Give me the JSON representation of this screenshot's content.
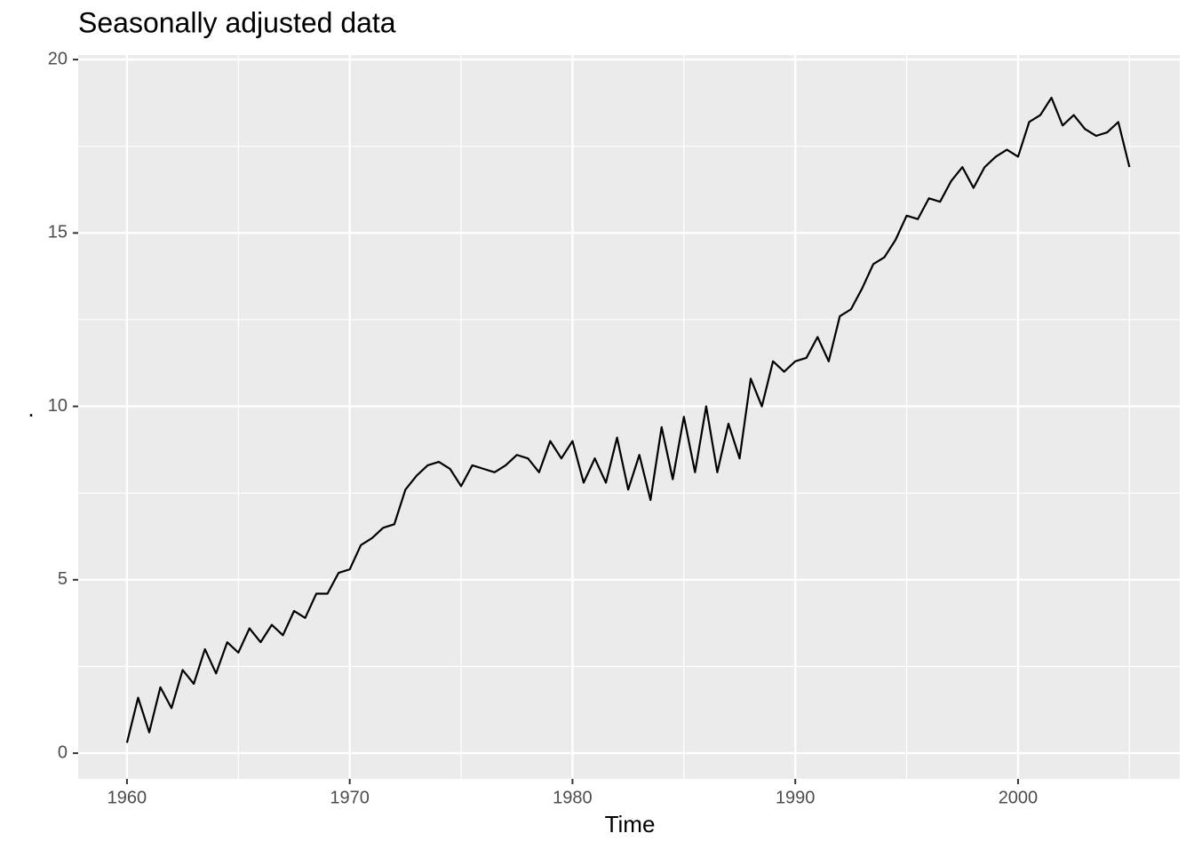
{
  "chart_data": {
    "type": "line",
    "title": "Seasonally adjusted data",
    "x_label": "Time",
    "y_label": ".",
    "x": [
      1960,
      1960.5,
      1961,
      1961.5,
      1962,
      1962.5,
      1963,
      1963.5,
      1964,
      1964.5,
      1965,
      1965.5,
      1966,
      1966.5,
      1967,
      1967.5,
      1968,
      1968.5,
      1969,
      1969.5,
      1970,
      1970.5,
      1971,
      1971.5,
      1972,
      1972.5,
      1973,
      1973.5,
      1974,
      1974.5,
      1975,
      1975.5,
      1976,
      1976.5,
      1977,
      1977.5,
      1978,
      1978.5,
      1979,
      1979.5,
      1980,
      1980.5,
      1981,
      1981.5,
      1982,
      1982.5,
      1983,
      1983.5,
      1984,
      1984.5,
      1985,
      1985.5,
      1986,
      1986.5,
      1987,
      1987.5,
      1988,
      1988.5,
      1989,
      1989.5,
      1990,
      1990.5,
      1991,
      1991.5,
      1992,
      1992.5,
      1993,
      1993.5,
      1994,
      1994.5,
      1995,
      1995.5,
      1996,
      1996.5,
      1997,
      1997.5,
      1998,
      1998.5,
      1999,
      1999.5,
      2000,
      2000.5,
      2001,
      2001.5,
      2002,
      2002.5,
      2003,
      2003.5,
      2004,
      2004.5,
      2005
    ],
    "values": [
      0.3,
      1.6,
      0.6,
      1.9,
      1.3,
      2.4,
      2.0,
      3.0,
      2.3,
      3.2,
      2.9,
      3.6,
      3.2,
      3.7,
      3.4,
      4.1,
      3.9,
      4.6,
      4.6,
      5.2,
      5.3,
      6.0,
      6.2,
      6.5,
      6.6,
      7.6,
      8.0,
      8.3,
      8.4,
      8.2,
      7.7,
      8.3,
      8.2,
      8.1,
      8.3,
      8.6,
      8.5,
      8.1,
      9.0,
      8.5,
      9.0,
      7.8,
      8.5,
      7.8,
      9.1,
      7.6,
      8.6,
      7.3,
      9.4,
      7.9,
      9.7,
      8.1,
      10.0,
      8.1,
      9.5,
      8.5,
      10.8,
      10.0,
      11.3,
      11.0,
      11.3,
      11.4,
      12.0,
      11.3,
      12.6,
      12.8,
      13.4,
      14.1,
      14.3,
      14.8,
      15.5,
      15.4,
      16.0,
      15.9,
      16.5,
      16.9,
      16.3,
      16.9,
      17.2,
      17.4,
      17.2,
      18.2,
      18.4,
      18.9,
      18.1,
      18.4,
      18.0,
      17.8,
      17.9,
      18.2,
      16.9
    ],
    "color": "#000000",
    "xlim": [
      1957.81,
      2007.26
    ],
    "xticks": [
      1960,
      1970,
      1980,
      1990,
      2000
    ],
    "x_minor_breaks": [
      1965,
      1975,
      1985,
      1995,
      2005
    ],
    "ylim": [
      -0.74,
      20.13
    ],
    "yticks": [
      0,
      5,
      10,
      15,
      20
    ],
    "y_minor_breaks": [
      2.5,
      7.5,
      12.5,
      17.5
    ],
    "grid": true
  }
}
